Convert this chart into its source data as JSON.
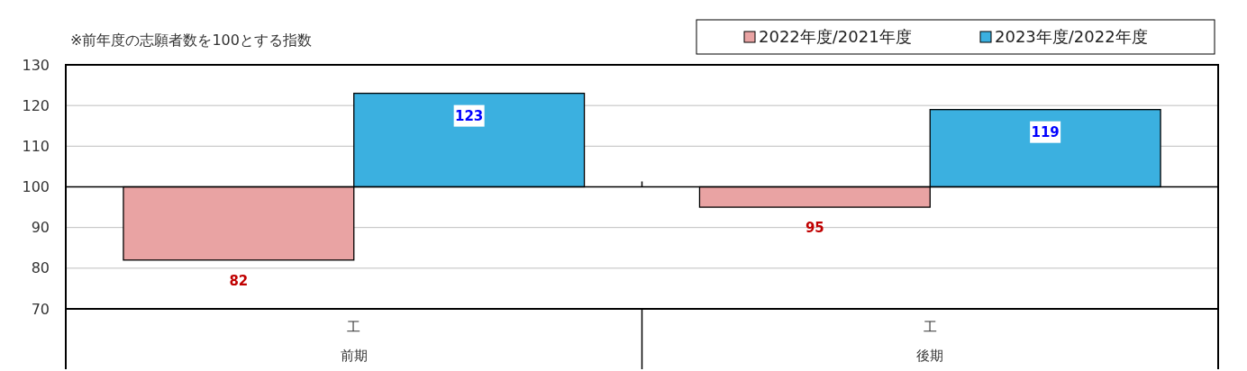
{
  "chart_data": {
    "type": "bar",
    "annotations": [
      "※前年度の志願者数を100とする指数",
      "前期",
      "後期"
    ],
    "categories": [
      "工",
      "工"
    ],
    "series": [
      {
        "name": "2022年度/2021年度",
        "color": "#e9a3a3",
        "base": [
          100,
          100
        ],
        "values": [
          -18,
          -5
        ],
        "value_labels": [
          "82",
          "95"
        ]
      },
      {
        "name": "2023年度/2022年度",
        "color": "#3bb0e0",
        "base": [
          100,
          100
        ],
        "values": [
          23,
          19
        ],
        "value_labels": [
          "123",
          "119"
        ]
      }
    ],
    "ylim": [
      70,
      130
    ],
    "yticks": [
      70,
      80,
      90,
      100,
      110,
      120,
      130
    ],
    "grid": "y",
    "legend": "top right",
    "ref_lines": [
      {
        "axis": "y",
        "value": 100,
        "color": "#000000"
      }
    ]
  }
}
